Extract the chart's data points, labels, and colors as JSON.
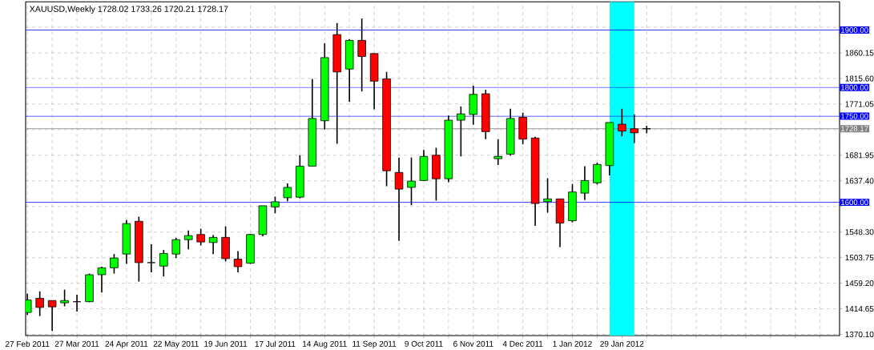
{
  "chart_data": {
    "type": "candlestick",
    "title": "XAUUSD,Weekly  1728.02 1733.26 1720.21 1728.17",
    "x": [
      "2011-02-27",
      "2011-03-06",
      "2011-03-13",
      "2011-03-20",
      "2011-03-27",
      "2011-04-03",
      "2011-04-10",
      "2011-04-17",
      "2011-04-24",
      "2011-05-01",
      "2011-05-08",
      "2011-05-15",
      "2011-05-22",
      "2011-05-29",
      "2011-06-05",
      "2011-06-12",
      "2011-06-19",
      "2011-06-26",
      "2011-07-03",
      "2011-07-10",
      "2011-07-17",
      "2011-07-24",
      "2011-07-31",
      "2011-08-07",
      "2011-08-14",
      "2011-08-21",
      "2011-08-28",
      "2011-09-04",
      "2011-09-11",
      "2011-09-18",
      "2011-09-25",
      "2011-10-02",
      "2011-10-09",
      "2011-10-16",
      "2011-10-23",
      "2011-10-30",
      "2011-11-06",
      "2011-11-13",
      "2011-11-20",
      "2011-11-27",
      "2011-12-04",
      "2011-12-11",
      "2011-12-18",
      "2011-12-25",
      "2012-01-01",
      "2012-01-08",
      "2012-01-15",
      "2012-01-22",
      "2012-01-29",
      "2012-02-05",
      "2012-02-12"
    ],
    "ohlc": [
      [
        1408,
        1441,
        1404,
        1430
      ],
      [
        1433,
        1445,
        1402,
        1417
      ],
      [
        1429,
        1429,
        1376,
        1418
      ],
      [
        1425,
        1448,
        1419,
        1429
      ],
      [
        1427,
        1439,
        1410,
        1427
      ],
      [
        1427,
        1476,
        1426,
        1474
      ],
      [
        1474,
        1488,
        1443,
        1486
      ],
      [
        1486,
        1510,
        1476,
        1503
      ],
      [
        1510,
        1569,
        1493,
        1563
      ],
      [
        1567,
        1575,
        1462,
        1495
      ],
      [
        1495,
        1527,
        1478,
        1495
      ],
      [
        1489,
        1517,
        1471,
        1511
      ],
      [
        1510,
        1538,
        1503,
        1535
      ],
      [
        1535,
        1551,
        1518,
        1542
      ],
      [
        1544,
        1554,
        1525,
        1531
      ],
      [
        1530,
        1543,
        1510,
        1539
      ],
      [
        1539,
        1558,
        1497,
        1502
      ],
      [
        1501,
        1515,
        1478,
        1488
      ],
      [
        1494,
        1545,
        1493,
        1544
      ],
      [
        1544,
        1594,
        1541,
        1594
      ],
      [
        1592,
        1610,
        1581,
        1601
      ],
      [
        1608,
        1633,
        1602,
        1626
      ],
      [
        1609,
        1682,
        1607,
        1663
      ],
      [
        1663,
        1815,
        1663,
        1746
      ],
      [
        1742,
        1877,
        1727,
        1852
      ],
      [
        1892,
        1912,
        1702,
        1827
      ],
      [
        1832,
        1884,
        1775,
        1882
      ],
      [
        1882,
        1920,
        1793,
        1854
      ],
      [
        1859,
        1859,
        1762,
        1811
      ],
      [
        1815,
        1827,
        1628,
        1655
      ],
      [
        1652,
        1678,
        1533,
        1623
      ],
      [
        1626,
        1678,
        1595,
        1637
      ],
      [
        1638,
        1691,
        1637,
        1680
      ],
      [
        1682,
        1695,
        1603,
        1641
      ],
      [
        1641,
        1751,
        1635,
        1743
      ],
      [
        1743,
        1767,
        1680,
        1754
      ],
      [
        1753,
        1803,
        1735,
        1788
      ],
      [
        1789,
        1796,
        1710,
        1723
      ],
      [
        1676,
        1710,
        1665,
        1680
      ],
      [
        1684,
        1763,
        1681,
        1746
      ],
      [
        1748,
        1756,
        1701,
        1710
      ],
      [
        1712,
        1714,
        1559,
        1598
      ],
      [
        1601,
        1642,
        1582,
        1606
      ],
      [
        1606,
        1606,
        1522,
        1564
      ],
      [
        1568,
        1632,
        1565,
        1618
      ],
      [
        1616,
        1663,
        1604,
        1638
      ],
      [
        1634,
        1669,
        1631,
        1666
      ],
      [
        1664,
        1739,
        1647,
        1739
      ],
      [
        1736,
        1763,
        1715,
        1724
      ],
      [
        1728,
        1753,
        1703,
        1721
      ],
      [
        1728.02,
        1733.26,
        1720.21,
        1728.17
      ]
    ],
    "colors": [
      "#00ff00",
      "#ff0000",
      "#ff0000",
      "#00ff00",
      "#000000",
      "#00ff00",
      "#00ff00",
      "#00ff00",
      "#00ff00",
      "#ff0000",
      "#000000",
      "#00ff00",
      "#00ff00",
      "#00ff00",
      "#ff0000",
      "#00ff00",
      "#ff0000",
      "#ff0000",
      "#00ff00",
      "#00ff00",
      "#00ff00",
      "#00ff00",
      "#00ff00",
      "#00ff00",
      "#00ff00",
      "#ff0000",
      "#00ff00",
      "#ff0000",
      "#ff0000",
      "#ff0000",
      "#ff0000",
      "#00ff00",
      "#00ff00",
      "#ff0000",
      "#00ff00",
      "#00ff00",
      "#00ff00",
      "#ff0000",
      "#00ff00",
      "#00ff00",
      "#ff0000",
      "#ff0000",
      "#00ff00",
      "#ff0000",
      "#00ff00",
      "#00ff00",
      "#00ff00",
      "#00ff00",
      "#ff0000",
      "#ff0000",
      "#000000"
    ],
    "xlim": [
      "2011-02-26",
      "2012-05-31"
    ],
    "xticks": [
      {
        "value": "2011-02-27",
        "label": "27 Feb 2011"
      },
      {
        "value": "2011-03-13",
        "label": null
      },
      {
        "value": "2011-03-27",
        "label": "27 Mar 2011"
      },
      {
        "value": "2011-04-10",
        "label": null
      },
      {
        "value": "2011-04-24",
        "label": "24 Apr 2011"
      },
      {
        "value": "2011-05-08",
        "label": null
      },
      {
        "value": "2011-05-22",
        "label": "22 May 2011"
      },
      {
        "value": "2011-06-05",
        "label": null
      },
      {
        "value": "2011-06-19",
        "label": "19 Jun 2011"
      },
      {
        "value": "2011-07-03",
        "label": null
      },
      {
        "value": "2011-07-17",
        "label": "17 Jul 2011"
      },
      {
        "value": "2011-07-31",
        "label": null
      },
      {
        "value": "2011-08-14",
        "label": "14 Aug 2011"
      },
      {
        "value": "2011-08-28",
        "label": null
      },
      {
        "value": "2011-09-11",
        "label": "11 Sep 2011"
      },
      {
        "value": "2011-09-25",
        "label": null
      },
      {
        "value": "2011-10-09",
        "label": "9 Oct 2011"
      },
      {
        "value": "2011-10-23",
        "label": null
      },
      {
        "value": "2011-11-06",
        "label": "6 Nov 2011"
      },
      {
        "value": "2011-11-20",
        "label": null
      },
      {
        "value": "2011-12-04",
        "label": "4 Dec 2011"
      },
      {
        "value": "2011-12-18",
        "label": null
      },
      {
        "value": "2012-01-01",
        "label": "1 Jan 2012"
      },
      {
        "value": "2012-01-15",
        "label": null
      },
      {
        "value": "2012-01-29",
        "label": "29 Jan 2012"
      },
      {
        "value": "2012-02-12",
        "label": null
      },
      {
        "value": "2012-02-26",
        "label": null
      },
      {
        "value": "2012-03-11",
        "label": null
      },
      {
        "value": "2012-03-25",
        "label": null
      },
      {
        "value": "2012-04-08",
        "label": null
      },
      {
        "value": "2012-04-22",
        "label": null
      },
      {
        "value": "2012-05-06",
        "label": null
      },
      {
        "value": "2012-05-20",
        "label": null
      }
    ],
    "ylim": [
      1368,
      1949
    ],
    "yticks": [
      {
        "value": 1370.1,
        "label": "1370.10"
      },
      {
        "value": 1414.65,
        "label": "1414.65"
      },
      {
        "value": 1459.2,
        "label": "1459.20"
      },
      {
        "value": 1503.75,
        "label": "1503.75"
      },
      {
        "value": 1548.3,
        "label": "1548.30"
      },
      {
        "value": 1592.85,
        "label": null
      },
      {
        "value": 1637.4,
        "label": "1637.40"
      },
      {
        "value": 1681.95,
        "label": "1681.95"
      },
      {
        "value": 1726.5,
        "label": null
      },
      {
        "value": 1771.05,
        "label": "1771.05"
      },
      {
        "value": 1815.6,
        "label": "1815.60"
      },
      {
        "value": 1860.15,
        "label": "1860.15"
      },
      {
        "value": 1904.7,
        "label": null
      }
    ],
    "grid": true,
    "ref_lines": [
      {
        "axis": "y",
        "value": 1900,
        "label": "1900.00",
        "color": "#0000ff"
      },
      {
        "axis": "y",
        "value": 1800,
        "label": "1800.00",
        "color": "#0000ff"
      },
      {
        "axis": "y",
        "value": 1750,
        "label": "1750.00",
        "color": "#0000ff"
      },
      {
        "axis": "y",
        "value": 1600,
        "label": "1600.00",
        "color": "#0000ff"
      },
      {
        "axis": "y",
        "value": 1728.17,
        "label": "1728.17",
        "color": "#808080"
      }
    ],
    "bands": [
      {
        "axis": "x",
        "from": "2012-01-22",
        "to": "2012-02-05",
        "color": "#00ffff"
      }
    ]
  }
}
